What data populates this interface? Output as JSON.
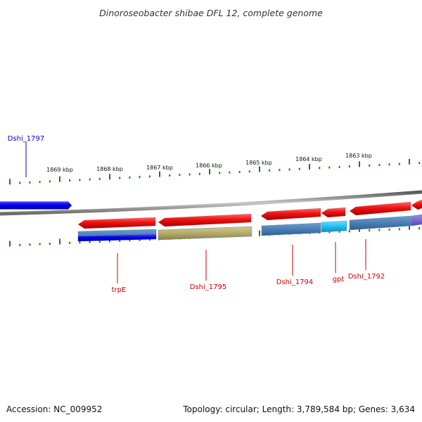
{
  "title": "Dinoroseobacter shibae DFL 12, complete genome",
  "ruler_labels": [
    "1869 kbp",
    "1868 kbp",
    "1867 kbp",
    "1866 kbp",
    "1865 kbp",
    "1864 kbp",
    "1863 kbp"
  ],
  "genes": [
    {
      "name": "Dshi_1797",
      "color": "#0000cc",
      "strand": "+"
    },
    {
      "name": "trpE",
      "color": "#cc0000",
      "strand": "-"
    },
    {
      "name": "Dshi_1795",
      "color": "#cc0000",
      "strand": "-"
    },
    {
      "name": "Dshi_1794",
      "color": "#cc0000",
      "strand": "-"
    },
    {
      "name": "gpt",
      "color": "#cc0000",
      "strand": "-"
    },
    {
      "name": "Dshi_1792",
      "color": "#cc0000",
      "strand": "-"
    }
  ],
  "colors": {
    "forward_gene": "#0000ee",
    "reverse_gene": "#ee1111",
    "backbone": "#888888",
    "ticks": "#1a7a1a",
    "domain_blue": "#4a7fb5",
    "domain_olive": "#b5aa6a",
    "domain_cyan": "#22c0f0",
    "domain_purple": "#7a6ad0"
  },
  "footer": {
    "accession": "Accession: NC_009952",
    "summary": "Topology: circular; Length: 3,789,584 bp; Genes: 3,634"
  }
}
